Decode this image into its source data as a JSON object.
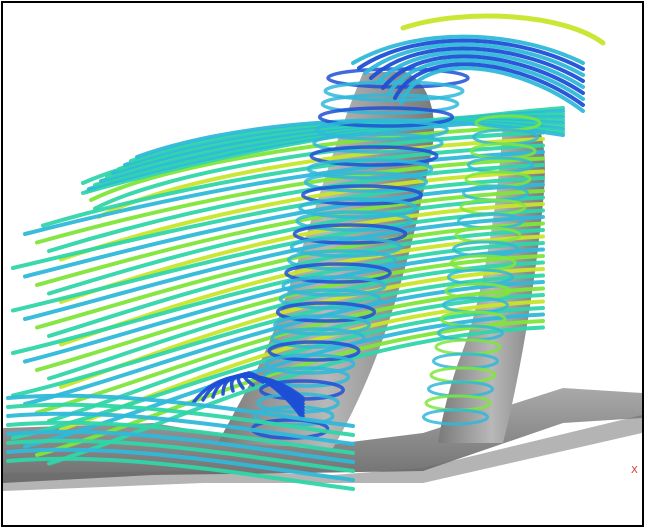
{
  "viewport": {
    "axis_label": "X",
    "colors": {
      "background": "#ffffff",
      "border": "#000000",
      "floor": "#8c8c8c",
      "floor_shadow": "#6a6a6a",
      "column": "#a8a8a8",
      "column_shadow": "#7d7d7d",
      "stream_blue": "#1e4fd6",
      "stream_cyan": "#2fb9d9",
      "stream_teal": "#2fd6a8",
      "stream_green": "#7fe63a",
      "stream_yellow": "#c8e62a",
      "axis_label": "#d23a3a"
    }
  }
}
